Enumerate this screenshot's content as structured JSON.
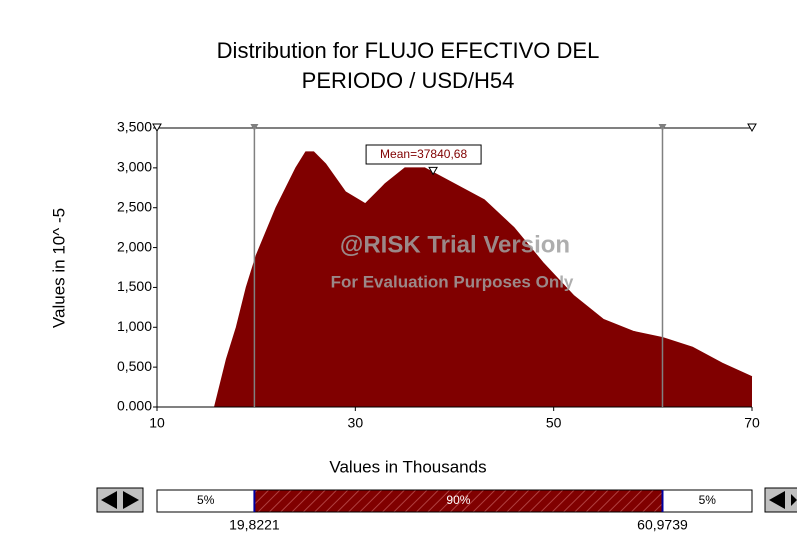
{
  "chart_data": {
    "type": "area",
    "title": [
      "Distribution for FLUJO EFECTIVO DEL",
      "PERIODO / USD/H54"
    ],
    "x_label": "Values in Thousands",
    "y_label": "Values in 10^ -5",
    "color": "#800000",
    "x": [
      15.8,
      17,
      18,
      19,
      20,
      22,
      24,
      25,
      25.8,
      27,
      29,
      31,
      33,
      35,
      37,
      40,
      43,
      46,
      49,
      52,
      55,
      58,
      61,
      64,
      67,
      70
    ],
    "values": [
      0,
      0.6,
      1.0,
      1.5,
      1.9,
      2.5,
      3.0,
      3.2,
      3.2,
      3.05,
      2.7,
      2.55,
      2.8,
      3.0,
      3.0,
      2.8,
      2.6,
      2.25,
      1.8,
      1.4,
      1.1,
      0.95,
      0.87,
      0.75,
      0.55,
      0.38
    ],
    "xlim": [
      10,
      70
    ],
    "xticks": [
      10,
      30,
      50,
      70
    ],
    "ylim": [
      0,
      3.5
    ],
    "yticks": [
      {
        "value": 0,
        "label": "0.000"
      },
      {
        "value": 0.5,
        "label": "0,500"
      },
      {
        "value": 1.0,
        "label": "1,000"
      },
      {
        "value": 1.5,
        "label": "1,500"
      },
      {
        "value": 2.0,
        "label": "2,000"
      },
      {
        "value": 2.5,
        "label": "2,500"
      },
      {
        "value": 3.0,
        "label": "3,000"
      },
      {
        "value": 3.5,
        "label": "3,500"
      }
    ],
    "mean": {
      "value": 37.84068,
      "label": "Mean=37840,68"
    },
    "delimiters": [
      {
        "value": 19.8221,
        "label": "19,8221"
      },
      {
        "value": 60.9739,
        "label": "60,9739"
      }
    ],
    "percentages": [
      {
        "value": 5,
        "label": "5%"
      },
      {
        "value": 90,
        "label": "90%"
      },
      {
        "value": 5,
        "label": "5%"
      }
    ],
    "watermark": [
      "@RISK Trial Version",
      "For Evaluation Purposes Only"
    ]
  }
}
